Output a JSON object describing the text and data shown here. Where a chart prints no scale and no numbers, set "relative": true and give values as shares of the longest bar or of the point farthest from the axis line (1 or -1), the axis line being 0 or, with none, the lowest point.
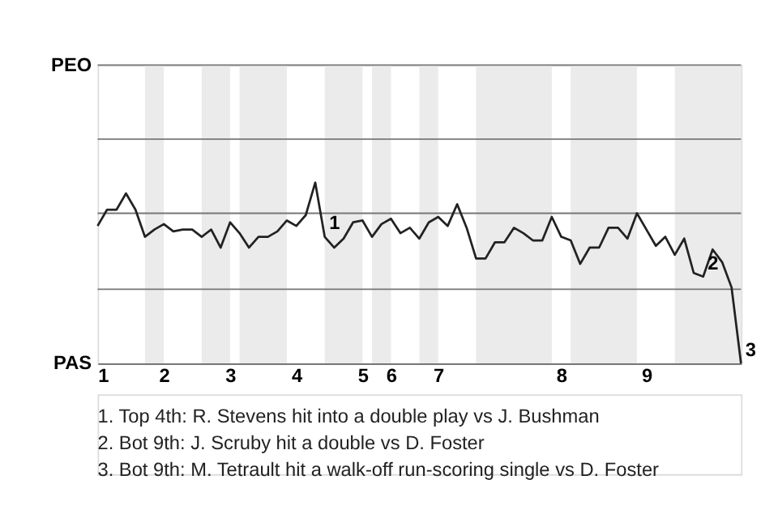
{
  "chart_data": {
    "type": "line",
    "relative": true,
    "categories": [
      "1",
      null,
      null,
      null,
      null,
      null,
      null,
      "2",
      null,
      null,
      null,
      null,
      null,
      null,
      "3",
      null,
      null,
      null,
      null,
      null,
      null,
      "4",
      null,
      null,
      null,
      null,
      null,
      null,
      "5",
      null,
      null,
      "6",
      null,
      null,
      null,
      null,
      "7",
      null,
      null,
      null,
      null,
      null,
      null,
      null,
      null,
      null,
      null,
      null,
      null,
      "8",
      null,
      null,
      null,
      null,
      null,
      null,
      null,
      null,
      "9",
      null,
      null,
      null,
      null,
      null,
      null,
      null,
      null,
      null,
      null
    ],
    "series": [
      {
        "color": "#222222",
        "values": [
          0.76,
          0.85,
          0.85,
          0.94,
          0.85,
          0.7,
          0.74,
          0.77,
          0.73,
          0.74,
          0.74,
          0.7,
          0.74,
          0.64,
          0.78,
          0.72,
          0.64,
          0.7,
          0.7,
          0.73,
          0.79,
          0.76,
          0.82,
          1,
          0.7,
          0.64,
          0.69,
          0.78,
          0.79,
          0.7,
          0.77,
          0.8,
          0.72,
          0.75,
          0.69,
          0.78,
          0.81,
          0.76,
          0.88,
          0.75,
          0.58,
          0.58,
          0.67,
          0.67,
          0.75,
          0.72,
          0.68,
          0.68,
          0.81,
          0.7,
          0.68,
          0.55,
          0.64,
          0.64,
          0.75,
          0.75,
          0.69,
          0.83,
          0.74,
          0.65,
          0.7,
          0.6,
          0.69,
          0.5,
          0.48,
          0.63,
          0.56,
          0.42,
          0
        ]
      }
    ],
    "ref_lines": [
      {
        "axis": "y",
        "value": 0.41,
        "color": "#777777"
      },
      {
        "axis": "y",
        "value": 0.83,
        "color": "#777777"
      },
      {
        "axis": "y",
        "value": 1.24,
        "color": "#777777"
      },
      {
        "axis": "y",
        "value": 1.65,
        "color": "#777777"
      }
    ],
    "annotations": [
      "PEO",
      "PAS",
      "1",
      "2",
      "3",
      "1. Top 4th: R. Stevens hit into a double play vs J. Bushman",
      "2. Bot 9th: J. Scruby hit a double vs D. Foster",
      "3. Bot 9th: M. Tetrault hit a walk-off run-scoring single vs D. Foster"
    ]
  }
}
